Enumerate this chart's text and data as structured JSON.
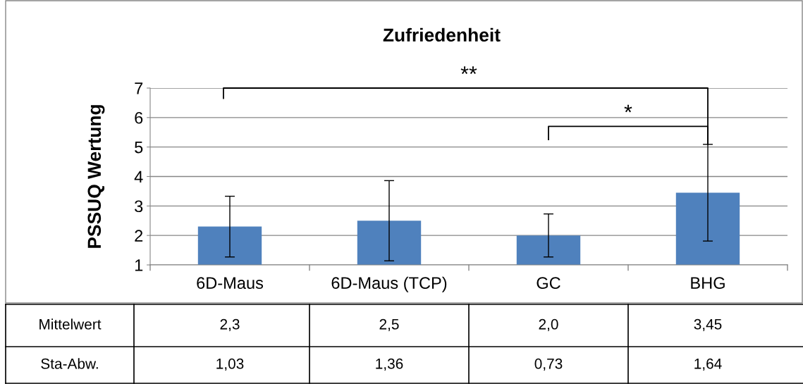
{
  "chart_data": {
    "type": "bar",
    "title": "Zufriedenheit",
    "ylabel": "PSSUQ Wertung",
    "categories": [
      "6D-Maus",
      "6D-Maus (TCP)",
      "GC",
      "BHG"
    ],
    "values": [
      2.3,
      2.5,
      2.0,
      3.45
    ],
    "color": "#4f81bd",
    "errors": [
      1.03,
      1.36,
      0.73,
      1.64
    ],
    "value_labels": [
      "2,3",
      "2,5",
      "2,0",
      "3,45"
    ],
    "ylim": [
      1,
      7
    ],
    "yticks": [
      1,
      2,
      3,
      4,
      5,
      6,
      7
    ],
    "grid": "y",
    "annotations": [
      "**",
      "*",
      "Mittelwert",
      "Sta-Abw.",
      "1,03",
      "1,36",
      "0,73",
      "1,64"
    ]
  }
}
